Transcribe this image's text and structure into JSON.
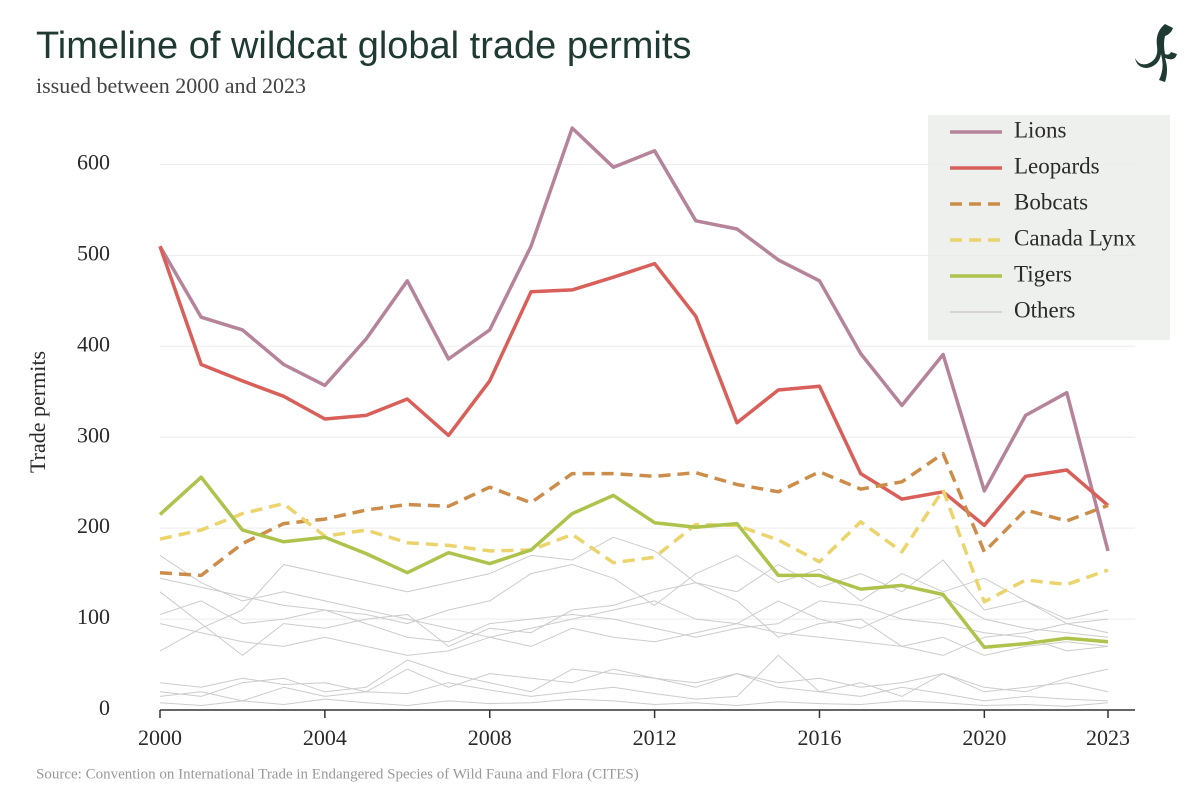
{
  "chart_data": {
    "type": "line",
    "title": "Timeline of wildcat global trade permits",
    "subtitle": "issued between 2000 and 2023",
    "y_label": "Trade permits",
    "source": "Source:  Convention on International Trade in Endangered Species of Wild Fauna and Flora (CITES)",
    "x": [
      2000,
      2001,
      2002,
      2003,
      2004,
      2005,
      2006,
      2007,
      2008,
      2009,
      2010,
      2011,
      2012,
      2013,
      2014,
      2015,
      2016,
      2017,
      2018,
      2019,
      2020,
      2021,
      2022,
      2023
    ],
    "xlim": [
      2000,
      2023
    ],
    "xticks": [
      2000,
      2004,
      2008,
      2012,
      2016,
      2020,
      2023
    ],
    "ylim": [
      0,
      650
    ],
    "yticks": [
      0,
      100,
      200,
      300,
      400,
      500,
      600
    ],
    "grid": true,
    "legend": "top-right",
    "series": [
      {
        "name": "Lions",
        "color": "#b5849a",
        "dash": false,
        "values": [
          510,
          432,
          418,
          380,
          357,
          408,
          472,
          386,
          418,
          510,
          640,
          597,
          615,
          538,
          529,
          495,
          472,
          392,
          335,
          391,
          241,
          324,
          349,
          175
        ]
      },
      {
        "name": "Leopards",
        "color": "#d9605a",
        "dash": false,
        "values": [
          510,
          380,
          362,
          345,
          320,
          324,
          342,
          302,
          362,
          460,
          462,
          476,
          491,
          433,
          316,
          352,
          356,
          260,
          232,
          240,
          203,
          257,
          264,
          225
        ]
      },
      {
        "name": "Bobcats",
        "color": "#cc8d4a",
        "dash": true,
        "values": [
          151,
          148,
          183,
          205,
          210,
          220,
          226,
          224,
          245,
          228,
          260,
          260,
          257,
          261,
          248,
          240,
          262,
          243,
          251,
          282,
          174,
          220,
          208,
          225
        ]
      },
      {
        "name": "Canada Lynx",
        "color": "#ecd46c",
        "dash": true,
        "values": [
          188,
          198,
          216,
          227,
          191,
          198,
          184,
          181,
          175,
          176,
          193,
          162,
          168,
          204,
          203,
          187,
          163,
          207,
          174,
          242,
          119,
          143,
          138,
          154
        ]
      },
      {
        "name": "Tigers",
        "color": "#adc34c",
        "dash": false,
        "values": [
          215,
          256,
          198,
          185,
          190,
          172,
          151,
          173,
          161,
          176,
          216,
          236,
          206,
          201,
          205,
          148,
          148,
          133,
          137,
          127,
          69,
          73,
          79,
          75
        ]
      }
    ],
    "others": {
      "name": "Others",
      "color": "#cfcbcb",
      "lines": [
        [
          170,
          140,
          120,
          130,
          120,
          110,
          100,
          90,
          80,
          90,
          100,
          110,
          120,
          100,
          95,
          120,
          100,
          90,
          110,
          125,
          100,
          90,
          85,
          80
        ],
        [
          130,
          95,
          60,
          95,
          90,
          100,
          105,
          70,
          90,
          85,
          110,
          115,
          130,
          140,
          120,
          80,
          95,
          100,
          70,
          80,
          60,
          70,
          75,
          70
        ],
        [
          105,
          120,
          95,
          100,
          110,
          95,
          80,
          75,
          95,
          100,
          105,
          100,
          90,
          80,
          90,
          95,
          120,
          115,
          100,
          95,
          85,
          80,
          65,
          70
        ],
        [
          65,
          90,
          110,
          160,
          150,
          140,
          130,
          140,
          150,
          170,
          165,
          190,
          175,
          140,
          130,
          160,
          135,
          150,
          130,
          165,
          110,
          120,
          95,
          100
        ],
        [
          30,
          25,
          35,
          28,
          30,
          20,
          45,
          25,
          40,
          35,
          30,
          45,
          35,
          25,
          40,
          30,
          35,
          25,
          30,
          40,
          20,
          25,
          30,
          20
        ],
        [
          15,
          20,
          10,
          25,
          15,
          20,
          18,
          30,
          22,
          15,
          20,
          25,
          18,
          12,
          15,
          60,
          20,
          15,
          25,
          18,
          10,
          15,
          12,
          10
        ],
        [
          8,
          5,
          10,
          6,
          12,
          8,
          5,
          10,
          7,
          8,
          12,
          10,
          6,
          8,
          5,
          9,
          7,
          6,
          10,
          8,
          5,
          6,
          4,
          8
        ],
        [
          20,
          15,
          30,
          35,
          20,
          25,
          55,
          40,
          30,
          20,
          45,
          40,
          35,
          30,
          40,
          25,
          20,
          30,
          15,
          40,
          25,
          20,
          35,
          45
        ],
        [
          95,
          85,
          75,
          70,
          80,
          70,
          60,
          65,
          80,
          70,
          90,
          80,
          75,
          85,
          95,
          85,
          80,
          75,
          70,
          60,
          80,
          85,
          95,
          85
        ],
        [
          145,
          135,
          125,
          115,
          110,
          105,
          95,
          110,
          120,
          150,
          160,
          145,
          115,
          150,
          170,
          140,
          155,
          120,
          150,
          130,
          145,
          120,
          100,
          110
        ]
      ]
    }
  }
}
